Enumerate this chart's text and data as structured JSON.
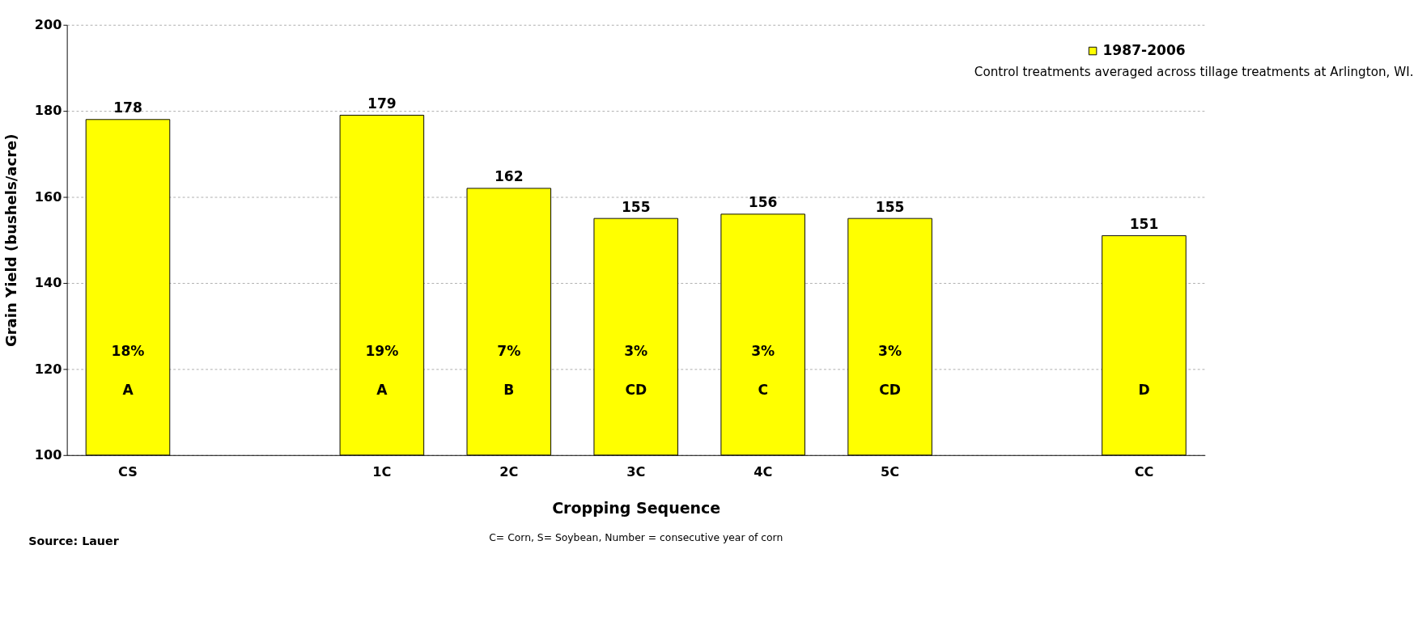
{
  "chart_data": {
    "type": "bar",
    "xlabel": "Cropping Sequence",
    "ylabel": "Grain Yield (bushels/acre)",
    "categories": [
      "CS",
      null,
      "1C",
      "2C",
      "3C",
      "4C",
      "5C",
      null,
      "CC"
    ],
    "series": [
      {
        "name": "1987-2006",
        "color": "#ffff00",
        "values": [
          178,
          null,
          179,
          162,
          155,
          156,
          155,
          null,
          151
        ]
      }
    ],
    "ylim": [
      100,
      200
    ],
    "yticks": [
      100,
      120,
      140,
      160,
      180,
      200
    ],
    "grid": "y",
    "legend": "top right",
    "data_labels": true,
    "annotations": [
      "Control treatments averaged across tillage treatments at Arlington, WI.",
      "C= Corn, S= Soybean, Number = consecutive year of corn",
      "Source: Lauer",
      "18%",
      "19%",
      "7%",
      "3%",
      "3%",
      "3%",
      "A",
      "A",
      "B",
      "CD",
      "C",
      "CD",
      "D"
    ]
  }
}
